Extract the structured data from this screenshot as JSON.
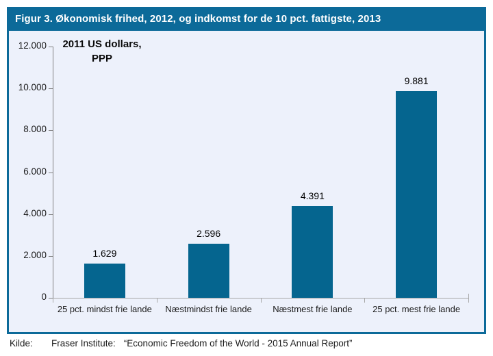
{
  "figure": {
    "title": "Figur 3. Økonomisk frihed, 2012, og indkomst for de 10 pct. fattigste, 2013"
  },
  "chart_data": {
    "type": "bar",
    "title": "Figur 3. Økonomisk frihed, 2012, og indkomst for de 10 pct. fattigste, 2013",
    "annotation_lines": [
      "2011 US dollars,",
      "PPP"
    ],
    "categories": [
      "25 pct. mindst frie lande",
      "Næstmindst frie lande",
      "Næstmest frie lande",
      "25 pct. mest frie lande"
    ],
    "values": [
      1629,
      2596,
      4391,
      9881
    ],
    "value_labels": [
      "1.629",
      "2.596",
      "4.391",
      "9.881"
    ],
    "xlabel": "",
    "ylabel": "",
    "ylim": [
      0,
      12000
    ],
    "ytick_interval": 2000,
    "ytick_labels": [
      "0",
      "2.000",
      "4.000",
      "6.000",
      "8.000",
      "10.000",
      "12.000"
    ],
    "grid": false,
    "legend": "none",
    "bar_color": "#05658f"
  },
  "source": {
    "label": "Kilde:",
    "institute": "Fraser Institute:",
    "publication": "“Economic Freedom of the World - 2015 Annual Report”"
  },
  "colors": {
    "header_bg": "#0c6a99",
    "box_border": "#0c6a99",
    "plot_bg": "#edf1fb",
    "bar": "#05658f",
    "y_axis": "#7f7f7f",
    "x_axis": "#a6a6a6",
    "text": "#1a1a1a",
    "title_text": "#ffffff"
  }
}
